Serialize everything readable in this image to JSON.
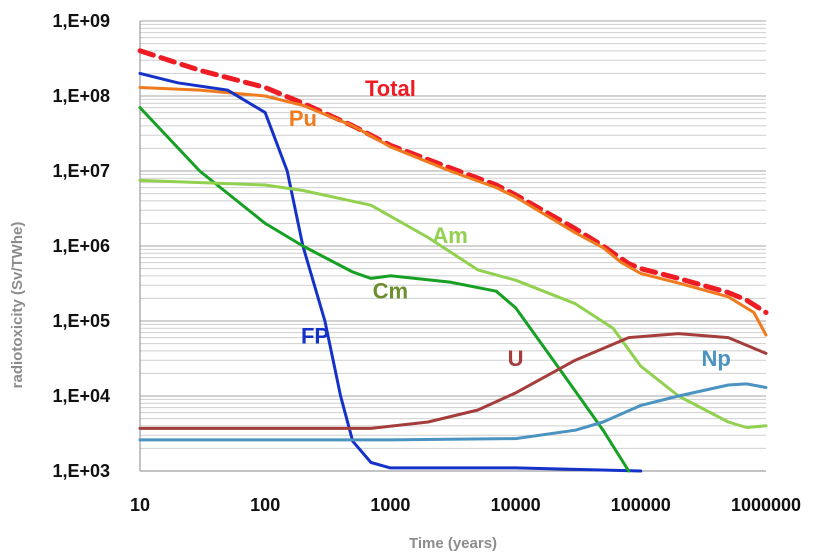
{
  "chart_data": {
    "type": "line",
    "xscale": "log",
    "yscale": "log",
    "xlabel": "Time (years)",
    "ylabel": "radiotoxicity (Sv/TWhe)",
    "xlim": [
      10,
      1000000
    ],
    "ylim": [
      1000,
      1000000000
    ],
    "x_ticks": [
      "10",
      "100",
      "1000",
      "10000",
      "100000",
      "1000000"
    ],
    "y_ticks": [
      "1,E+03",
      "1,E+04",
      "1,E+05",
      "1,E+06",
      "1,E+07",
      "1,E+08",
      "1,E+09"
    ],
    "grid": "horizontal major and minor",
    "series": [
      {
        "name": "Total",
        "color": "#ee1c24",
        "dashed": true,
        "points": [
          [
            10,
            400000000
          ],
          [
            30,
            220000000
          ],
          [
            100,
            130000000
          ],
          [
            200,
            80000000
          ],
          [
            500,
            40000000
          ],
          [
            1000,
            22000000
          ],
          [
            3000,
            11000000
          ],
          [
            7000,
            6500000
          ],
          [
            10000,
            4800000
          ],
          [
            30000,
            1700000
          ],
          [
            50000,
            1000000
          ],
          [
            80000,
            580000
          ],
          [
            100000,
            500000
          ],
          [
            200000,
            370000
          ],
          [
            500000,
            240000
          ],
          [
            700000,
            190000
          ],
          [
            1000000,
            130000
          ]
        ]
      },
      {
        "name": "Pu",
        "color": "#f07b1f",
        "dashed": false,
        "points": [
          [
            10,
            130000000
          ],
          [
            30,
            120000000
          ],
          [
            100,
            100000000
          ],
          [
            200,
            75000000
          ],
          [
            500,
            40000000
          ],
          [
            1000,
            21000000
          ],
          [
            3000,
            10000000
          ],
          [
            7000,
            6000000
          ],
          [
            10000,
            4500000
          ],
          [
            30000,
            1500000
          ],
          [
            50000,
            950000
          ],
          [
            70000,
            600000
          ],
          [
            100000,
            430000
          ],
          [
            200000,
            320000
          ],
          [
            500000,
            210000
          ],
          [
            800000,
            130000
          ],
          [
            1000000,
            65000
          ]
        ]
      },
      {
        "name": "FP",
        "color": "#1432c8",
        "dashed": false,
        "points": [
          [
            10,
            200000000
          ],
          [
            20,
            150000000
          ],
          [
            50,
            120000000
          ],
          [
            100,
            60000000
          ],
          [
            150,
            10000000
          ],
          [
            200,
            1000000
          ],
          [
            300,
            100000
          ],
          [
            400,
            10000
          ],
          [
            500,
            2500
          ],
          [
            700,
            1300
          ],
          [
            1000,
            1100
          ],
          [
            3000,
            1100
          ],
          [
            10000,
            1100
          ],
          [
            100000,
            1000
          ]
        ]
      },
      {
        "name": "Cm",
        "color": "#16a024",
        "dashed": false,
        "points": [
          [
            10,
            70000000
          ],
          [
            30,
            10000000
          ],
          [
            100,
            2000000
          ],
          [
            200,
            1000000
          ],
          [
            500,
            450000
          ],
          [
            700,
            370000
          ],
          [
            1000,
            400000
          ],
          [
            3000,
            330000
          ],
          [
            7000,
            250000
          ],
          [
            10000,
            150000
          ],
          [
            20000,
            30000
          ],
          [
            50000,
            3500
          ],
          [
            80000,
            1000
          ]
        ]
      },
      {
        "name": "Am",
        "color": "#92d050",
        "dashed": false,
        "points": [
          [
            10,
            7500000
          ],
          [
            100,
            6500000
          ],
          [
            200,
            5500000
          ],
          [
            700,
            3500000
          ],
          [
            2000,
            1300000
          ],
          [
            5000,
            480000
          ],
          [
            10000,
            350000
          ],
          [
            30000,
            170000
          ],
          [
            60000,
            80000
          ],
          [
            100000,
            25000
          ],
          [
            200000,
            10000
          ],
          [
            500000,
            4500
          ],
          [
            700000,
            3800
          ],
          [
            1000000,
            4000
          ]
        ]
      },
      {
        "name": "U",
        "color": "#a63d3d",
        "dashed": false,
        "points": [
          [
            10,
            3700
          ],
          [
            700,
            3700
          ],
          [
            2000,
            4500
          ],
          [
            5000,
            6500
          ],
          [
            10000,
            11000
          ],
          [
            30000,
            30000
          ],
          [
            80000,
            60000
          ],
          [
            200000,
            68000
          ],
          [
            500000,
            60000
          ],
          [
            1000000,
            37000
          ]
        ]
      },
      {
        "name": "Np",
        "color": "#4b93c0",
        "dashed": false,
        "points": [
          [
            10,
            2600
          ],
          [
            1000,
            2600
          ],
          [
            10000,
            2700
          ],
          [
            30000,
            3500
          ],
          [
            50000,
            4500
          ],
          [
            100000,
            7500
          ],
          [
            200000,
            10000
          ],
          [
            500000,
            14000
          ],
          [
            700000,
            14500
          ],
          [
            1000000,
            13000
          ]
        ]
      }
    ],
    "labels": [
      {
        "text": "Total",
        "color": "#ee1c24",
        "x": 1000,
        "y": 100000000
      },
      {
        "text": "Pu",
        "color": "#f07b1f",
        "x": 200,
        "y": 40000000
      },
      {
        "text": "Am",
        "color": "#92d050",
        "x": 3000,
        "y": 1100000
      },
      {
        "text": "Cm",
        "color": "#6b8e2e",
        "x": 1000,
        "y": 200000
      },
      {
        "text": "FP",
        "color": "#1432c8",
        "x": 250,
        "y": 50000
      },
      {
        "text": "U",
        "color": "#a63d3d",
        "x": 10000,
        "y": 25000
      },
      {
        "text": "Np",
        "color": "#4b93c0",
        "x": 400000,
        "y": 25000
      }
    ]
  }
}
